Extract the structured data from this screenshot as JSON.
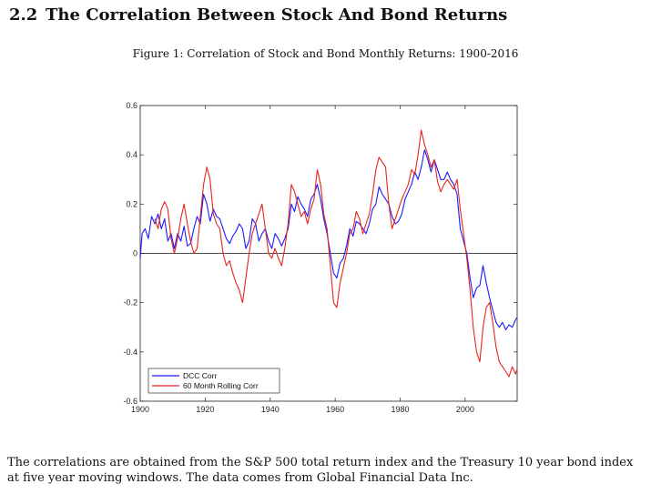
{
  "section": {
    "number": "2.2",
    "title": "The Correlation Between Stock And Bond Returns"
  },
  "figure": {
    "caption": "Figure 1: Correlation of Stock and Bond Monthly Returns: 1900-2016"
  },
  "chart_data": {
    "type": "line",
    "title": "",
    "xlabel": "",
    "ylabel": "",
    "xlim": [
      1900,
      2016
    ],
    "ylim": [
      -0.6,
      0.6
    ],
    "x_ticks": [
      1900,
      1920,
      1940,
      1960,
      1980,
      2000
    ],
    "y_ticks": [
      -0.6,
      -0.4,
      -0.2,
      0,
      0.2,
      0.4,
      0.6
    ],
    "y_tick_labels": [
      "-0.6",
      "-0.4",
      "-0.2",
      "0",
      "0.2",
      "0.4",
      "0.6"
    ],
    "grid": false,
    "zero_line": true,
    "legend_position": "bottom-left",
    "series": [
      {
        "name": "DCC Corr",
        "color": "#1a1aff",
        "points": [
          [
            1900.0,
            -0.02
          ],
          [
            1900.6,
            0.08
          ],
          [
            1901.5,
            0.1
          ],
          [
            1902.5,
            0.06
          ],
          [
            1903.5,
            0.15
          ],
          [
            1904.5,
            0.12
          ],
          [
            1905.5,
            0.16
          ],
          [
            1906.5,
            0.1
          ],
          [
            1907.5,
            0.14
          ],
          [
            1908.5,
            0.05
          ],
          [
            1909.5,
            0.08
          ],
          [
            1910.5,
            0.02
          ],
          [
            1911.5,
            0.08
          ],
          [
            1912.5,
            0.05
          ],
          [
            1913.5,
            0.11
          ],
          [
            1914.5,
            0.03
          ],
          [
            1915.5,
            0.04
          ],
          [
            1916.5,
            0.1
          ],
          [
            1917.5,
            0.15
          ],
          [
            1918.5,
            0.12
          ],
          [
            1919.5,
            0.24
          ],
          [
            1920.5,
            0.2
          ],
          [
            1921.5,
            0.13
          ],
          [
            1922.5,
            0.18
          ],
          [
            1923.5,
            0.15
          ],
          [
            1924.5,
            0.14
          ],
          [
            1925.5,
            0.1
          ],
          [
            1926.5,
            0.06
          ],
          [
            1927.5,
            0.04
          ],
          [
            1928.5,
            0.07
          ],
          [
            1929.5,
            0.09
          ],
          [
            1930.5,
            0.12
          ],
          [
            1931.5,
            0.1
          ],
          [
            1932.5,
            0.02
          ],
          [
            1933.5,
            0.05
          ],
          [
            1934.5,
            0.14
          ],
          [
            1935.5,
            0.12
          ],
          [
            1936.5,
            0.05
          ],
          [
            1937.5,
            0.08
          ],
          [
            1938.5,
            0.1
          ],
          [
            1939.5,
            0.05
          ],
          [
            1940.5,
            0.02
          ],
          [
            1941.5,
            0.08
          ],
          [
            1942.5,
            0.06
          ],
          [
            1943.5,
            0.03
          ],
          [
            1944.5,
            0.06
          ],
          [
            1945.5,
            0.1
          ],
          [
            1946.5,
            0.2
          ],
          [
            1947.5,
            0.17
          ],
          [
            1948.5,
            0.23
          ],
          [
            1949.5,
            0.2
          ],
          [
            1950.5,
            0.18
          ],
          [
            1951.5,
            0.15
          ],
          [
            1952.5,
            0.22
          ],
          [
            1953.5,
            0.24
          ],
          [
            1954.5,
            0.28
          ],
          [
            1955.5,
            0.22
          ],
          [
            1956.5,
            0.14
          ],
          [
            1957.5,
            0.08
          ],
          [
            1958.5,
            0.0
          ],
          [
            1959.5,
            -0.08
          ],
          [
            1960.5,
            -0.1
          ],
          [
            1961.5,
            -0.04
          ],
          [
            1962.5,
            -0.02
          ],
          [
            1963.5,
            0.03
          ],
          [
            1964.5,
            0.1
          ],
          [
            1965.5,
            0.07
          ],
          [
            1966.5,
            0.13
          ],
          [
            1967.5,
            0.12
          ],
          [
            1968.5,
            0.1
          ],
          [
            1969.5,
            0.08
          ],
          [
            1970.5,
            0.12
          ],
          [
            1971.5,
            0.18
          ],
          [
            1972.5,
            0.2
          ],
          [
            1973.5,
            0.27
          ],
          [
            1974.5,
            0.24
          ],
          [
            1975.5,
            0.22
          ],
          [
            1976.5,
            0.2
          ],
          [
            1977.5,
            0.15
          ],
          [
            1978.5,
            0.12
          ],
          [
            1979.5,
            0.13
          ],
          [
            1980.5,
            0.16
          ],
          [
            1981.5,
            0.22
          ],
          [
            1982.5,
            0.25
          ],
          [
            1983.5,
            0.28
          ],
          [
            1984.5,
            0.33
          ],
          [
            1985.5,
            0.3
          ],
          [
            1986.5,
            0.35
          ],
          [
            1987.5,
            0.42
          ],
          [
            1988.5,
            0.38
          ],
          [
            1989.5,
            0.33
          ],
          [
            1990.5,
            0.38
          ],
          [
            1991.5,
            0.34
          ],
          [
            1992.5,
            0.3
          ],
          [
            1993.5,
            0.3
          ],
          [
            1994.5,
            0.33
          ],
          [
            1995.5,
            0.3
          ],
          [
            1996.5,
            0.28
          ],
          [
            1997.5,
            0.24
          ],
          [
            1998.5,
            0.1
          ],
          [
            1999.5,
            0.05
          ],
          [
            2000.5,
            0.0
          ],
          [
            2001.5,
            -0.1
          ],
          [
            2002.5,
            -0.18
          ],
          [
            2003.5,
            -0.14
          ],
          [
            2004.5,
            -0.13
          ],
          [
            2005.5,
            -0.05
          ],
          [
            2006.5,
            -0.12
          ],
          [
            2007.5,
            -0.18
          ],
          [
            2008.5,
            -0.23
          ],
          [
            2009.5,
            -0.28
          ],
          [
            2010.5,
            -0.3
          ],
          [
            2011.5,
            -0.28
          ],
          [
            2012.5,
            -0.31
          ],
          [
            2013.5,
            -0.29
          ],
          [
            2014.5,
            -0.3
          ],
          [
            2015.5,
            -0.27
          ],
          [
            2016.0,
            -0.26
          ]
        ]
      },
      {
        "name": "60 Month Rolling Corr",
        "color": "#e8231e",
        "points": [
          [
            1904.5,
            0.14
          ],
          [
            1905.5,
            0.1
          ],
          [
            1906.5,
            0.18
          ],
          [
            1907.5,
            0.21
          ],
          [
            1908.5,
            0.18
          ],
          [
            1909.5,
            0.06
          ],
          [
            1910.5,
            0.0
          ],
          [
            1911.5,
            0.06
          ],
          [
            1912.5,
            0.14
          ],
          [
            1913.5,
            0.2
          ],
          [
            1914.5,
            0.12
          ],
          [
            1915.5,
            0.05
          ],
          [
            1916.5,
            0.0
          ],
          [
            1917.5,
            0.02
          ],
          [
            1918.5,
            0.15
          ],
          [
            1919.5,
            0.28
          ],
          [
            1920.5,
            0.35
          ],
          [
            1921.5,
            0.3
          ],
          [
            1922.5,
            0.16
          ],
          [
            1923.5,
            0.12
          ],
          [
            1924.5,
            0.1
          ],
          [
            1925.5,
            0.0
          ],
          [
            1926.5,
            -0.05
          ],
          [
            1927.5,
            -0.03
          ],
          [
            1928.5,
            -0.08
          ],
          [
            1929.5,
            -0.12
          ],
          [
            1930.5,
            -0.15
          ],
          [
            1931.5,
            -0.2
          ],
          [
            1932.5,
            -0.1
          ],
          [
            1933.5,
            0.0
          ],
          [
            1934.5,
            0.08
          ],
          [
            1935.5,
            0.12
          ],
          [
            1936.5,
            0.16
          ],
          [
            1937.5,
            0.2
          ],
          [
            1938.5,
            0.1
          ],
          [
            1939.5,
            0.0
          ],
          [
            1940.5,
            -0.02
          ],
          [
            1941.5,
            0.02
          ],
          [
            1942.5,
            -0.02
          ],
          [
            1943.5,
            -0.05
          ],
          [
            1944.5,
            0.02
          ],
          [
            1945.5,
            0.12
          ],
          [
            1946.5,
            0.28
          ],
          [
            1947.5,
            0.25
          ],
          [
            1948.5,
            0.2
          ],
          [
            1949.5,
            0.15
          ],
          [
            1950.5,
            0.17
          ],
          [
            1951.5,
            0.12
          ],
          [
            1952.5,
            0.18
          ],
          [
            1953.5,
            0.22
          ],
          [
            1954.5,
            0.34
          ],
          [
            1955.5,
            0.28
          ],
          [
            1956.5,
            0.16
          ],
          [
            1957.5,
            0.1
          ],
          [
            1958.5,
            -0.05
          ],
          [
            1959.5,
            -0.2
          ],
          [
            1960.5,
            -0.22
          ],
          [
            1961.5,
            -0.12
          ],
          [
            1962.5,
            -0.06
          ],
          [
            1963.5,
            0.0
          ],
          [
            1964.5,
            0.08
          ],
          [
            1965.5,
            0.1
          ],
          [
            1966.5,
            0.17
          ],
          [
            1967.5,
            0.14
          ],
          [
            1968.5,
            0.08
          ],
          [
            1969.5,
            0.12
          ],
          [
            1970.5,
            0.16
          ],
          [
            1971.5,
            0.24
          ],
          [
            1972.5,
            0.34
          ],
          [
            1973.5,
            0.39
          ],
          [
            1974.5,
            0.37
          ],
          [
            1975.5,
            0.35
          ],
          [
            1976.5,
            0.2
          ],
          [
            1977.5,
            0.1
          ],
          [
            1978.5,
            0.14
          ],
          [
            1979.5,
            0.18
          ],
          [
            1980.5,
            0.22
          ],
          [
            1981.5,
            0.25
          ],
          [
            1982.5,
            0.28
          ],
          [
            1983.5,
            0.34
          ],
          [
            1984.5,
            0.32
          ],
          [
            1985.5,
            0.4
          ],
          [
            1986.5,
            0.5
          ],
          [
            1987.5,
            0.44
          ],
          [
            1988.5,
            0.4
          ],
          [
            1989.5,
            0.35
          ],
          [
            1990.5,
            0.38
          ],
          [
            1991.5,
            0.29
          ],
          [
            1992.5,
            0.25
          ],
          [
            1993.5,
            0.28
          ],
          [
            1994.5,
            0.3
          ],
          [
            1995.5,
            0.28
          ],
          [
            1996.5,
            0.26
          ],
          [
            1997.5,
            0.3
          ],
          [
            1998.5,
            0.18
          ],
          [
            1999.5,
            0.08
          ],
          [
            2000.5,
            -0.02
          ],
          [
            2001.5,
            -0.15
          ],
          [
            2002.5,
            -0.3
          ],
          [
            2003.5,
            -0.4
          ],
          [
            2004.5,
            -0.44
          ],
          [
            2005.5,
            -0.3
          ],
          [
            2006.5,
            -0.22
          ],
          [
            2007.5,
            -0.2
          ],
          [
            2008.5,
            -0.28
          ],
          [
            2009.5,
            -0.38
          ],
          [
            2010.5,
            -0.44
          ],
          [
            2011.5,
            -0.46
          ],
          [
            2012.5,
            -0.48
          ],
          [
            2013.5,
            -0.5
          ],
          [
            2014.5,
            -0.46
          ],
          [
            2015.5,
            -0.49
          ],
          [
            2016.0,
            -0.47
          ]
        ]
      }
    ]
  },
  "body_text": "The correlations are obtained from the S&P 500 total return index and the Treasury 10 year bond index at five year moving windows. The data comes from Global Financial Data Inc."
}
